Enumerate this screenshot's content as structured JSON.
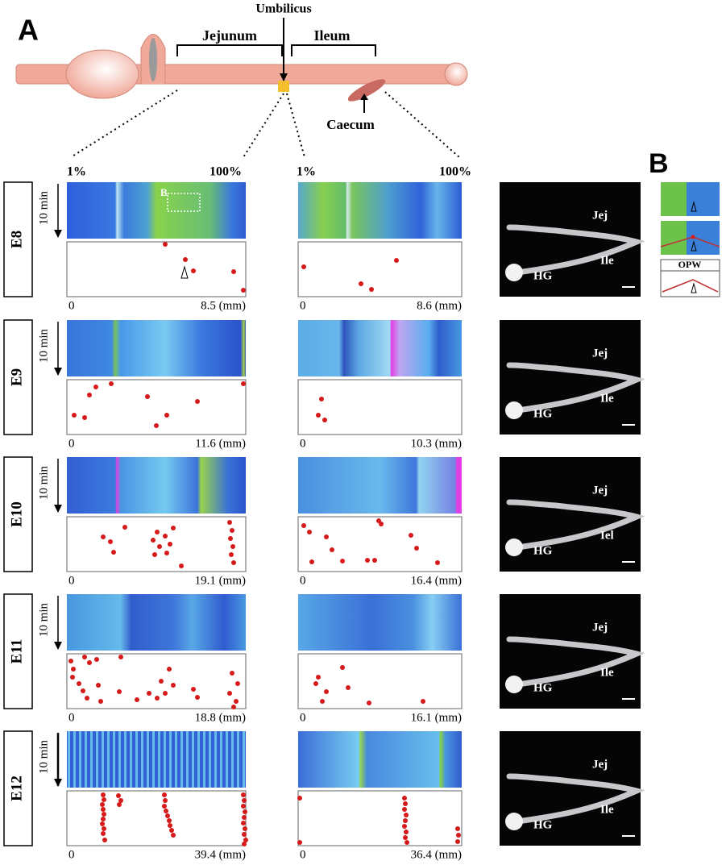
{
  "panel_a": {
    "label": "A",
    "umbilicus": "Umbilicus",
    "jejunum": "Jejunum",
    "ileum": "Ileum",
    "caecum": "Caecum",
    "percent_labels": [
      "1%",
      "100%",
      "1%",
      "100%"
    ],
    "inset_label": "B"
  },
  "rows": [
    {
      "stage": "E8",
      "time": "10 min",
      "jejunum_axis": [
        "0",
        "8.5 (mm)"
      ],
      "ileum_axis": [
        "0",
        "8.6 (mm)"
      ],
      "photo_labels": [
        "Jej",
        "Ile",
        "HG"
      ]
    },
    {
      "stage": "E9",
      "time": "10 min",
      "jejunum_axis": [
        "0",
        "11.6 (mm)"
      ],
      "ileum_axis": [
        "0",
        "10.3 (mm)"
      ],
      "photo_labels": [
        "Jej",
        "Ile",
        "HG"
      ]
    },
    {
      "stage": "E10",
      "time": "10 min",
      "jejunum_axis": [
        "0",
        "19.1 (mm)"
      ],
      "ileum_axis": [
        "0",
        "16.4 (mm)"
      ],
      "photo_labels": [
        "Jej",
        "Iel",
        "HG"
      ]
    },
    {
      "stage": "E11",
      "time": "10 min",
      "jejunum_axis": [
        "0",
        "18.8 (mm)"
      ],
      "ileum_axis": [
        "0",
        "16.1 (mm)"
      ],
      "photo_labels": [
        "Jej",
        "Ile",
        "HG"
      ]
    },
    {
      "stage": "E12",
      "time": "10 min",
      "jejunum_axis": [
        "0",
        "39.4 (mm)"
      ],
      "ileum_axis": [
        "0",
        "36.4 (mm)"
      ],
      "photo_labels": [
        "Jej",
        "Ile",
        "HG"
      ]
    }
  ],
  "panel_b": {
    "label": "B",
    "opw": "OPW"
  }
}
